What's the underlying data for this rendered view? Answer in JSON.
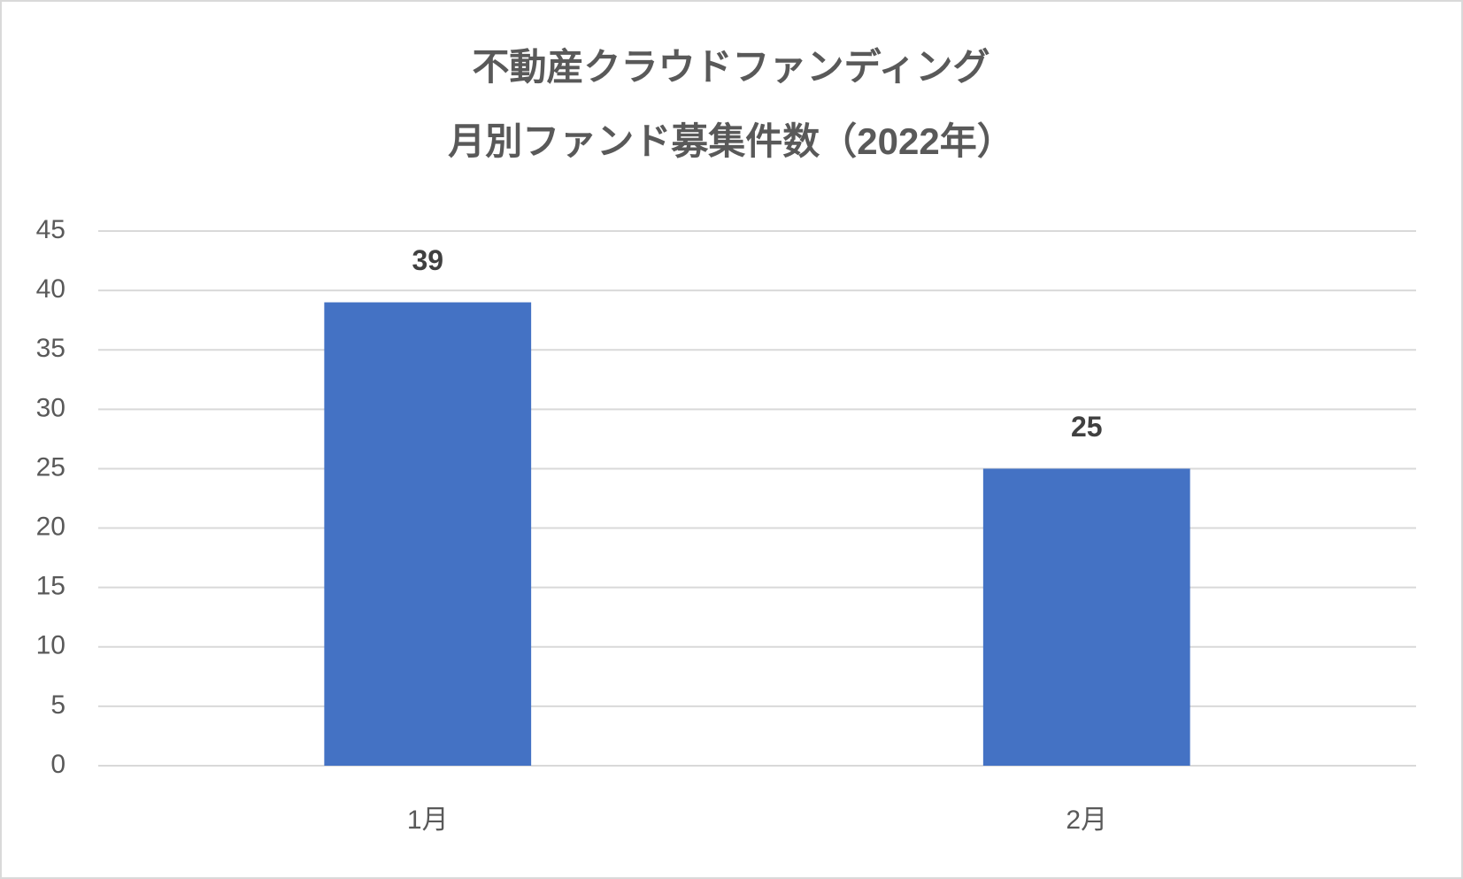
{
  "chart_data": {
    "type": "bar",
    "title": [
      "不動産クラウドファンディング",
      "月別ファンド募集件数（2022年）"
    ],
    "categories": [
      "1月",
      "2月"
    ],
    "values": [
      39,
      25
    ],
    "color": "#4472c4",
    "ylim": [
      0,
      45
    ],
    "yticks": [
      0,
      5,
      10,
      15,
      20,
      25,
      30,
      35,
      40,
      45
    ],
    "grid": true,
    "data_labels": true
  }
}
